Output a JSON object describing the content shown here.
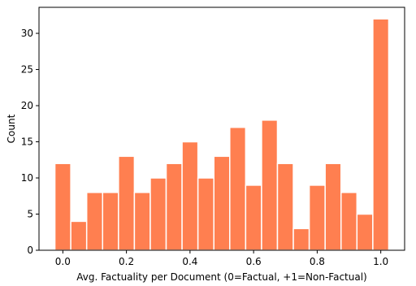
{
  "chart_data": {
    "type": "bar",
    "title": "",
    "xlabel": "Avg. Factuality per Document (0=Factual, +1=Non-Factual)",
    "ylabel": "Count",
    "bar_color": "#FF7F50",
    "bar_edge_color": "#ffffff",
    "xlim": [
      -0.075,
      1.075
    ],
    "ylim": [
      0,
      33.6
    ],
    "xticks": [
      0.0,
      0.2,
      0.4,
      0.6,
      0.8,
      1.0
    ],
    "xtick_labels": [
      "0.0",
      "0.2",
      "0.4",
      "0.6",
      "0.8",
      "1.0"
    ],
    "yticks": [
      0,
      5,
      10,
      15,
      20,
      25,
      30
    ],
    "ytick_labels": [
      "0",
      "5",
      "10",
      "15",
      "20",
      "25",
      "30"
    ],
    "bins": [
      {
        "x_start": -0.025,
        "x_end": 0.025,
        "value": 12
      },
      {
        "x_start": 0.025,
        "x_end": 0.075,
        "value": 4
      },
      {
        "x_start": 0.075,
        "x_end": 0.125,
        "value": 8
      },
      {
        "x_start": 0.125,
        "x_end": 0.175,
        "value": 8
      },
      {
        "x_start": 0.175,
        "x_end": 0.225,
        "value": 13
      },
      {
        "x_start": 0.225,
        "x_end": 0.275,
        "value": 8
      },
      {
        "x_start": 0.275,
        "x_end": 0.325,
        "value": 10
      },
      {
        "x_start": 0.325,
        "x_end": 0.375,
        "value": 12
      },
      {
        "x_start": 0.375,
        "x_end": 0.425,
        "value": 15
      },
      {
        "x_start": 0.425,
        "x_end": 0.475,
        "value": 10
      },
      {
        "x_start": 0.475,
        "x_end": 0.525,
        "value": 13
      },
      {
        "x_start": 0.525,
        "x_end": 0.575,
        "value": 17
      },
      {
        "x_start": 0.575,
        "x_end": 0.625,
        "value": 9
      },
      {
        "x_start": 0.625,
        "x_end": 0.675,
        "value": 18
      },
      {
        "x_start": 0.675,
        "x_end": 0.725,
        "value": 12
      },
      {
        "x_start": 0.725,
        "x_end": 0.775,
        "value": 3
      },
      {
        "x_start": 0.775,
        "x_end": 0.825,
        "value": 9
      },
      {
        "x_start": 0.825,
        "x_end": 0.875,
        "value": 12
      },
      {
        "x_start": 0.875,
        "x_end": 0.925,
        "value": 8
      },
      {
        "x_start": 0.925,
        "x_end": 0.975,
        "value": 5
      },
      {
        "x_start": 0.975,
        "x_end": 1.025,
        "value": 32
      }
    ]
  }
}
